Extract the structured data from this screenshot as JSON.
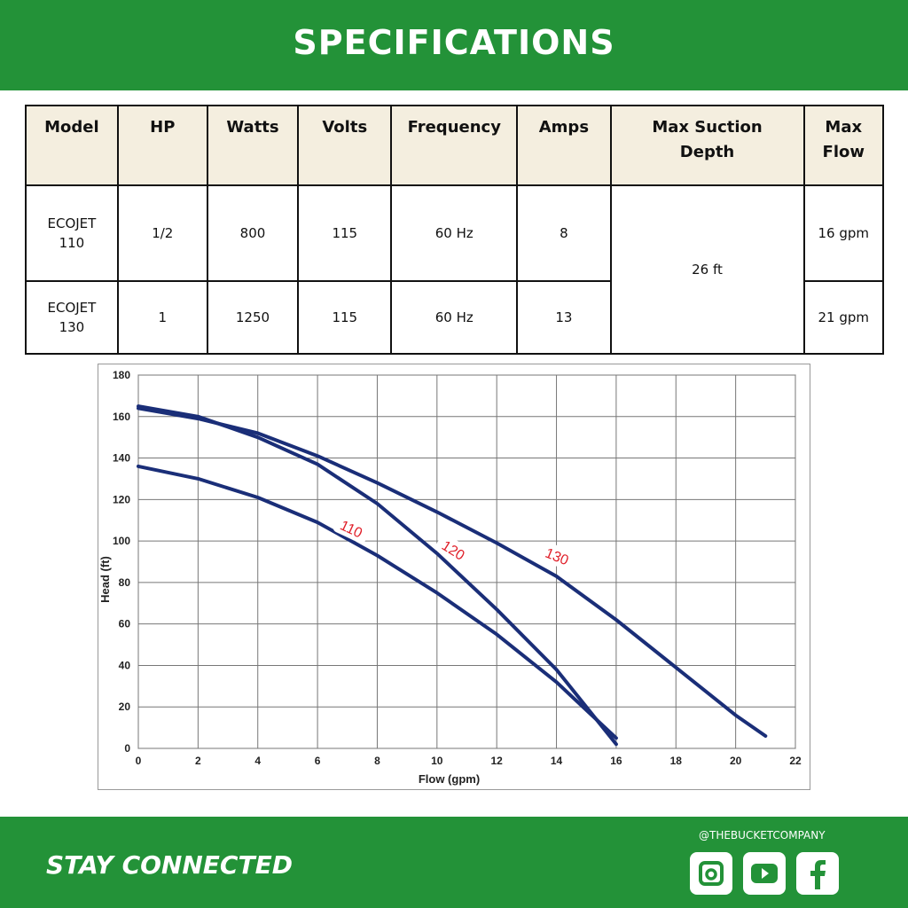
{
  "header": {
    "title": "SPECIFICATIONS"
  },
  "table": {
    "columns": [
      "Model",
      "HP",
      "Watts",
      "Volts",
      "Frequency",
      "Amps",
      "Max Suction Depth",
      "Max Flow"
    ],
    "max_suction_depth": "26 ft",
    "rows": [
      {
        "model": "ECOJET 110",
        "hp": "1/2",
        "watts": "800",
        "volts": "115",
        "frequency": "60 Hz",
        "amps": "8",
        "max_flow": "16 gpm"
      },
      {
        "model": "ECOJET 130",
        "hp": "1",
        "watts": "1250",
        "volts": "115",
        "frequency": "60 Hz",
        "amps": "13",
        "max_flow": "21 gpm"
      }
    ]
  },
  "chart_data": {
    "type": "line",
    "x_label": "Flow (gpm)",
    "y_label": "Head (ft)",
    "xlim": [
      0,
      22
    ],
    "xticks": [
      0,
      2,
      4,
      6,
      8,
      10,
      12,
      14,
      16,
      18,
      20,
      22
    ],
    "ylim": [
      0,
      180
    ],
    "yticks": [
      0,
      20,
      40,
      60,
      80,
      100,
      120,
      140,
      160,
      180
    ],
    "grid": true,
    "series": [
      {
        "name": "110",
        "color": "#1a2e78",
        "x": [
          0,
          2,
          4,
          6,
          8,
          10,
          12,
          14,
          16
        ],
        "values": [
          136,
          130,
          121,
          109,
          93,
          75,
          55,
          32,
          5
        ]
      },
      {
        "name": "120",
        "color": "#1a2e78",
        "x": [
          0,
          2,
          4,
          6,
          8,
          10,
          12,
          14,
          16
        ],
        "values": [
          165,
          160,
          150,
          137,
          118,
          94,
          67,
          38,
          2
        ]
      },
      {
        "name": "130",
        "color": "#1a2e78",
        "x": [
          0,
          2,
          4,
          6,
          8,
          10,
          12,
          14,
          16,
          18,
          20,
          21
        ],
        "values": [
          164,
          159,
          152,
          141,
          128,
          114,
          99,
          83,
          62,
          39,
          16,
          6
        ]
      }
    ]
  },
  "footer": {
    "tagline": "STAY CONNECTED",
    "handle": "@THEBUCKETCOMPANY"
  }
}
